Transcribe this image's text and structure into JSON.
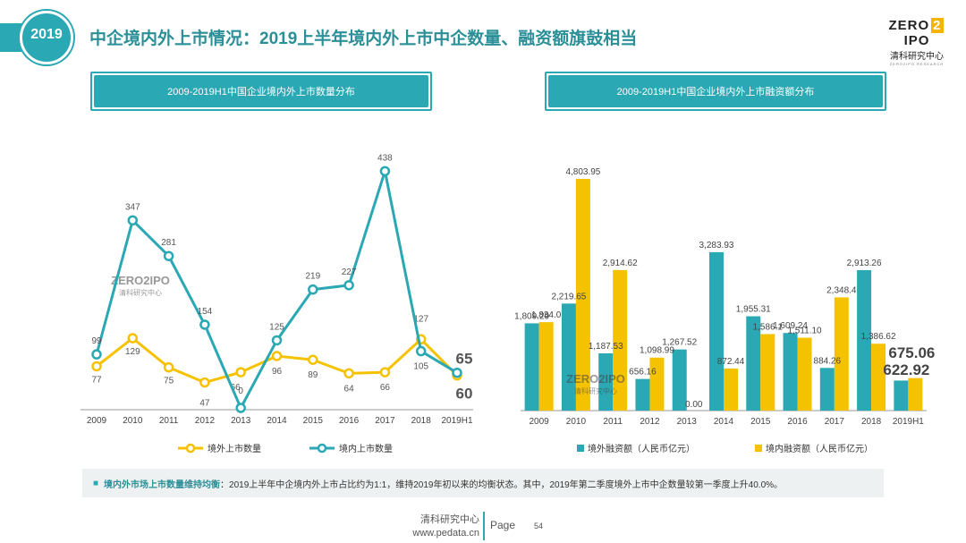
{
  "header": {
    "year_badge": "2019",
    "title": "中企境内外上市情况：2019上半年境内外上市中企数量、融资额旗鼓相当"
  },
  "brand": {
    "line1a": "ZERO",
    "line1z": "2",
    "line1b": "IPO",
    "line2": "清科研究中心",
    "line3": "ZERO2IPO RESEARCH"
  },
  "colors": {
    "teal": "#2aa8b3",
    "yellow": "#f5c200",
    "title": "#2b8f98"
  },
  "left_panel": {
    "title": "2009-2019H1中国企业境内外上市数量分布"
  },
  "right_panel": {
    "title": "2009-2019H1中国企业境内外上市融资额分布"
  },
  "chart_data": [
    {
      "type": "line",
      "categories": [
        "2009",
        "2010",
        "2011",
        "2012",
        "2013",
        "2014",
        "2015",
        "2016",
        "2017",
        "2018",
        "2019H1"
      ],
      "series": [
        {
          "name": "境外上市数量",
          "color": "#f5c200",
          "values": [
            77,
            129,
            75,
            47,
            66,
            96,
            89,
            64,
            66,
            127,
            60
          ],
          "labels": [
            "77",
            "129",
            "75",
            "47",
            "66",
            "96",
            "89",
            "64",
            "66",
            "127",
            "60"
          ]
        },
        {
          "name": "境内上市数量",
          "color": "#2aa8b3",
          "values": [
            99,
            347,
            281,
            154,
            0,
            125,
            219,
            227,
            438,
            105,
            65
          ],
          "labels": [
            "99",
            "347",
            "281",
            "154",
            "0",
            "125",
            "219",
            "227",
            "438",
            "105",
            "65"
          ]
        }
      ],
      "ylim": [
        0,
        500
      ],
      "legend": "bottom",
      "watermark": "ZERO2IPO 清科研究中心"
    },
    {
      "type": "bar",
      "categories": [
        "2009",
        "2010",
        "2011",
        "2012",
        "2013",
        "2014",
        "2015",
        "2016",
        "2017",
        "2018",
        "2019H1"
      ],
      "series": [
        {
          "name": "境外融资额（人民币亿元）",
          "color": "#2aa8b3",
          "values": [
            1809.29,
            2219.65,
            1187.53,
            656.16,
            1267.52,
            3283.93,
            1955.31,
            1609.24,
            884.26,
            2913.26,
            622.92
          ],
          "labels": [
            "1,809.29",
            "2,219.65",
            "1,187.53",
            "656.16",
            "1,267.52",
            "3,283.93",
            "1,955.31",
            "1,609.24",
            "884.26",
            "2,913.26",
            "622.92"
          ]
        },
        {
          "name": "境内融资额（人民币亿元）",
          "color": "#f5c200",
          "values": [
            1834.0,
            4803.95,
            2914.62,
            1098.99,
            0.0,
            872.44,
            1586.1,
            1511.1,
            2348.4,
            1386.62,
            675.06
          ],
          "labels": [
            "1,834.0",
            "4,803.95",
            "2,914.62",
            "1,098.99",
            "0.00",
            "872.44",
            "1,586.1",
            "1,511.10",
            "2,348.4",
            "1,386.62",
            "675.06"
          ]
        }
      ],
      "ylim": [
        0,
        5200
      ],
      "legend": "bottom",
      "watermark": "ZERO2IPO 清科研究中心"
    }
  ],
  "note": {
    "bullet": "■",
    "lead": "境内外市场上市数量维持均衡",
    "text": "：2019上半年中企境内外上市占比约为1:1，维持2019年初以来的均衡状态。其中，2019年第二季度境外上市中企数量较第一季度上升40.0%。"
  },
  "footer": {
    "org": "清科研究中心",
    "url": "www.pedata.cn",
    "page_label": "Page",
    "page_number": "54"
  }
}
